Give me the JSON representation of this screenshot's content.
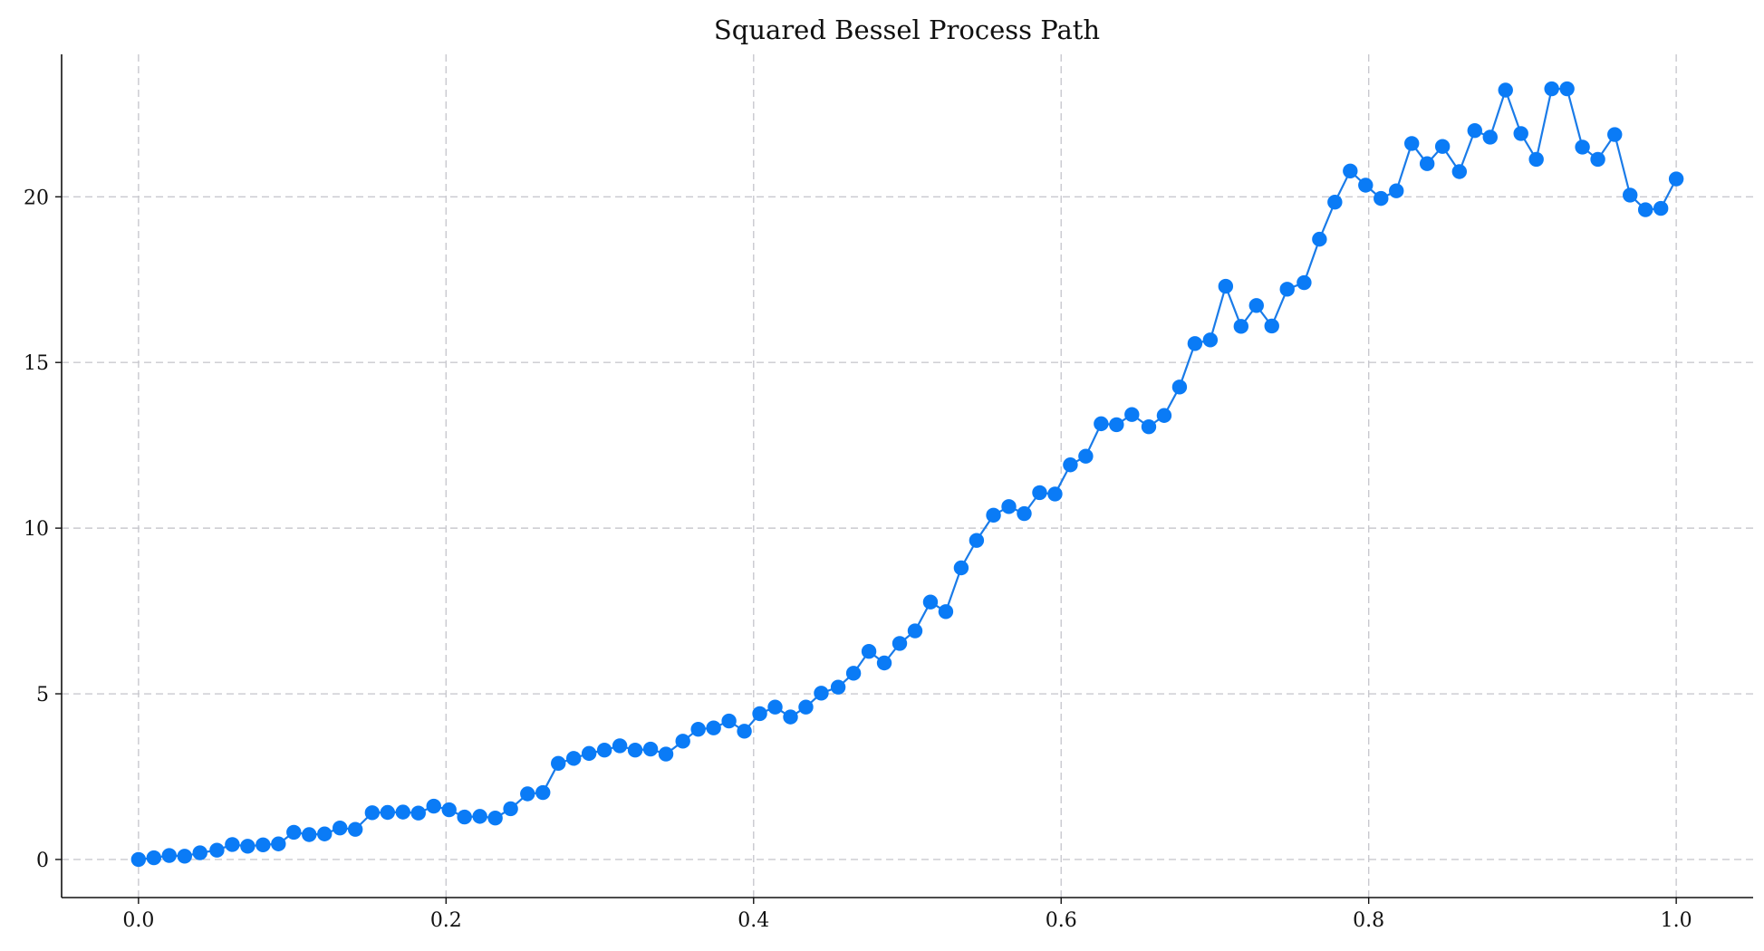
{
  "chart_data": {
    "type": "line",
    "title": "Squared Bessel Process Path",
    "xlabel": "",
    "ylabel": "",
    "xlim": [
      -0.05,
      1.05
    ],
    "ylim": [
      -1.15,
      24.3
    ],
    "grid": true,
    "xticks": [
      0.0,
      0.2,
      0.4,
      0.6,
      0.8,
      1.0
    ],
    "xtick_labels": [
      "0.0",
      "0.2",
      "0.4",
      "0.6",
      "0.8",
      "1.0"
    ],
    "yticks": [
      0,
      5,
      10,
      15,
      20
    ],
    "ytick_labels": [
      "0",
      "5",
      "10",
      "15",
      "20"
    ],
    "color": "#0a7bf6",
    "series": [
      {
        "x": [
          0.0,
          0.01,
          0.02,
          0.03,
          0.04,
          0.051,
          0.061,
          0.071,
          0.081,
          0.091,
          0.101,
          0.111,
          0.121,
          0.131,
          0.141,
          0.152,
          0.162,
          0.172,
          0.182,
          0.192,
          0.202,
          0.212,
          0.222,
          0.232,
          0.242,
          0.253,
          0.263,
          0.273,
          0.283,
          0.293,
          0.303,
          0.313,
          0.323,
          0.333,
          0.343,
          0.354,
          0.364,
          0.374,
          0.384,
          0.394,
          0.404,
          0.414,
          0.424,
          0.434,
          0.444,
          0.455,
          0.465,
          0.475,
          0.485,
          0.495,
          0.505,
          0.515,
          0.525,
          0.535,
          0.545,
          0.556,
          0.566,
          0.576,
          0.586,
          0.596,
          0.606,
          0.616,
          0.626,
          0.636,
          0.646,
          0.657,
          0.667,
          0.677,
          0.687,
          0.697,
          0.707,
          0.717,
          0.727,
          0.737,
          0.747,
          0.758,
          0.768,
          0.778,
          0.788,
          0.798,
          0.808,
          0.818,
          0.828,
          0.838,
          0.848,
          0.859,
          0.869,
          0.879,
          0.889,
          0.899,
          0.909,
          0.919,
          0.929,
          0.939,
          0.949,
          0.96,
          0.97,
          0.98,
          0.99,
          1.0
        ],
        "values": [
          0.0,
          0.05,
          0.12,
          0.1,
          0.2,
          0.28,
          0.45,
          0.4,
          0.44,
          0.47,
          0.82,
          0.75,
          0.77,
          0.95,
          0.91,
          1.41,
          1.42,
          1.43,
          1.4,
          1.61,
          1.5,
          1.28,
          1.3,
          1.25,
          1.53,
          1.98,
          2.02,
          2.9,
          3.05,
          3.2,
          3.3,
          3.43,
          3.3,
          3.33,
          3.18,
          3.57,
          3.93,
          3.97,
          4.18,
          3.87,
          4.4,
          4.6,
          4.3,
          4.6,
          5.02,
          5.2,
          5.62,
          6.28,
          5.93,
          6.52,
          6.9,
          7.77,
          7.48,
          8.8,
          9.63,
          10.39,
          10.65,
          10.44,
          11.07,
          11.03,
          11.91,
          12.17,
          13.15,
          13.12,
          13.43,
          13.06,
          13.4,
          14.26,
          15.57,
          15.68,
          17.3,
          16.09,
          16.72,
          16.1,
          17.21,
          17.41,
          18.72,
          19.84,
          20.78,
          20.35,
          19.95,
          20.18,
          21.61,
          21.0,
          21.52,
          20.76,
          22.0,
          21.8,
          23.22,
          21.91,
          21.13,
          23.26,
          23.26,
          21.5,
          21.13,
          21.88,
          20.05,
          19.61,
          19.65,
          20.54
        ]
      }
    ]
  }
}
